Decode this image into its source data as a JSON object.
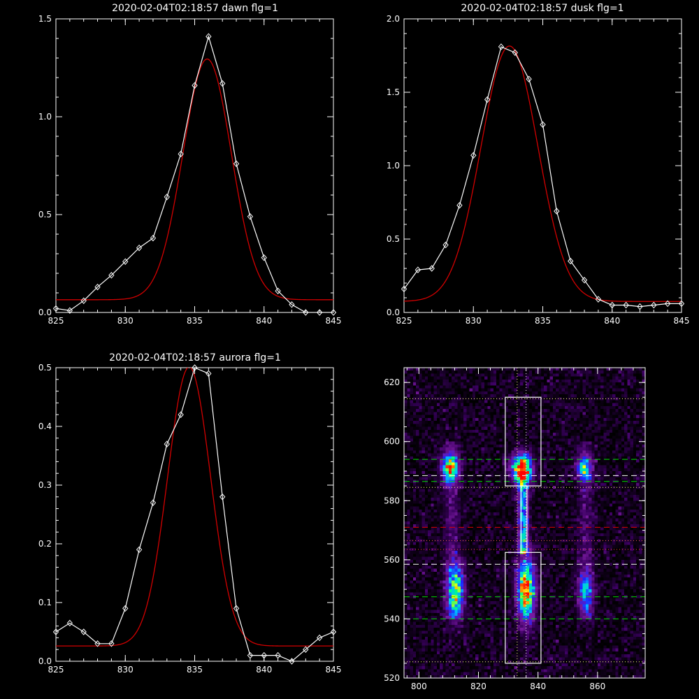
{
  "colors": {
    "background": "#000000",
    "axis": "#ffffff",
    "data_line": "#ffffff",
    "fit_line": "#d40000",
    "green_dash": "#00e000",
    "red_dash": "#e00000"
  },
  "chart_data": [
    {
      "id": "dawn",
      "type": "line",
      "title": "2020-02-04T02:18:57 dawn flg=1",
      "xlim": [
        825,
        845
      ],
      "ylim": [
        0,
        1.5
      ],
      "xticks": [
        825,
        830,
        835,
        840,
        845
      ],
      "xtick_labels": [
        "825",
        "830",
        "835",
        "840",
        "845"
      ],
      "yticks": [
        0,
        0.5,
        1.0,
        1.5
      ],
      "ytick_labels": [
        "0.0",
        "0.5",
        "1.0",
        "1.5"
      ],
      "series": [
        {
          "style": "line-diamond-markers",
          "x": [
            825,
            826,
            827,
            828,
            829,
            830,
            831,
            832,
            833,
            834,
            835,
            836,
            837,
            838,
            839,
            840,
            841,
            842,
            843,
            844,
            845
          ],
          "y": [
            0.02,
            0.01,
            0.06,
            0.13,
            0.19,
            0.26,
            0.33,
            0.38,
            0.59,
            0.81,
            1.16,
            1.41,
            1.17,
            0.76,
            0.49,
            0.28,
            0.11,
            0.04,
            0.0,
            0.0,
            0.0
          ]
        },
        {
          "style": "gaussian-fit",
          "amplitude": 1.23,
          "center": 835.9,
          "sigma": 1.75,
          "offset": 0.065
        }
      ]
    },
    {
      "id": "dusk",
      "type": "line",
      "title": "2020-02-04T02:18:57 dusk flg=1",
      "xlim": [
        825,
        845
      ],
      "ylim": [
        0,
        2.0
      ],
      "xticks": [
        825,
        830,
        835,
        840,
        845
      ],
      "xtick_labels": [
        "825",
        "830",
        "835",
        "840",
        "845"
      ],
      "yticks": [
        0,
        0.5,
        1.0,
        1.5,
        2.0
      ],
      "ytick_labels": [
        "0.0",
        "0.5",
        "1.0",
        "1.5",
        "2.0"
      ],
      "series": [
        {
          "style": "line-diamond-markers",
          "x": [
            825,
            826,
            827,
            828,
            829,
            830,
            831,
            832,
            833,
            834,
            835,
            836,
            837,
            838,
            839,
            840,
            841,
            842,
            843,
            844,
            845
          ],
          "y": [
            0.16,
            0.29,
            0.3,
            0.46,
            0.73,
            1.07,
            1.45,
            1.81,
            1.77,
            1.59,
            1.28,
            0.69,
            0.35,
            0.22,
            0.09,
            0.05,
            0.05,
            0.04,
            0.05,
            0.06,
            0.06
          ]
        },
        {
          "style": "gaussian-fit",
          "amplitude": 1.74,
          "center": 832.6,
          "sigma": 2.05,
          "offset": 0.075
        }
      ]
    },
    {
      "id": "aurora",
      "type": "line",
      "title": "2020-02-04T02:18:57 aurora flg=1",
      "xlim": [
        825,
        845
      ],
      "ylim": [
        0,
        0.5
      ],
      "xticks": [
        825,
        830,
        835,
        840,
        845
      ],
      "xtick_labels": [
        "825",
        "830",
        "835",
        "840",
        "845"
      ],
      "yticks": [
        0,
        0.1,
        0.2,
        0.3,
        0.4,
        0.5
      ],
      "ytick_labels": [
        "0.0",
        "0.1",
        "0.2",
        "0.3",
        "0.4",
        "0.5"
      ],
      "series": [
        {
          "style": "line-diamond-markers",
          "x": [
            825,
            826,
            827,
            828,
            829,
            830,
            831,
            832,
            833,
            834,
            835,
            836,
            837,
            838,
            839,
            840,
            841,
            842,
            843,
            844,
            845
          ],
          "y": [
            0.05,
            0.065,
            0.05,
            0.03,
            0.03,
            0.09,
            0.19,
            0.27,
            0.37,
            0.42,
            0.5,
            0.49,
            0.28,
            0.09,
            0.01,
            0.01,
            0.01,
            0.0,
            0.02,
            0.04,
            0.05
          ]
        },
        {
          "style": "gaussian-fit",
          "amplitude": 0.475,
          "center": 834.6,
          "sigma": 1.55,
          "offset": 0.026
        }
      ]
    },
    {
      "id": "image",
      "type": "heatmap",
      "title": "",
      "xlim": [
        795,
        876
      ],
      "ylim": [
        520,
        625
      ],
      "xticks": [
        800,
        820,
        840,
        860
      ],
      "xtick_labels": [
        "800",
        "820",
        "840",
        "860"
      ],
      "yticks": [
        520,
        540,
        560,
        580,
        600,
        620
      ],
      "ytick_labels": [
        "520",
        "540",
        "560",
        "580",
        "600",
        "620"
      ],
      "colormap": [
        "#000000",
        "#3a0060",
        "#7a1aa0",
        "#2020ff",
        "#00c0ff",
        "#00ff80",
        "#ffff00",
        "#ff4000",
        "#ff0000"
      ],
      "blobs": [
        {
          "x": 810.5,
          "y": 591,
          "sx": 1.8,
          "sy": 3.2,
          "amp": 0.72
        },
        {
          "x": 834.5,
          "y": 591,
          "sx": 2.2,
          "sy": 3.0,
          "amp": 1.0
        },
        {
          "x": 855.5,
          "y": 591,
          "sx": 1.6,
          "sy": 2.6,
          "amp": 0.55
        },
        {
          "x": 812.5,
          "y": 549,
          "sx": 1.8,
          "sy": 6.0,
          "amp": 0.6
        },
        {
          "x": 836.0,
          "y": 550,
          "sx": 2.0,
          "sy": 7.0,
          "amp": 0.85
        },
        {
          "x": 856.0,
          "y": 549,
          "sx": 1.6,
          "sy": 5.0,
          "amp": 0.4
        }
      ],
      "columns": [
        {
          "x": 835,
          "y0": 562,
          "y1": 590,
          "sx": 1.2,
          "amp": 0.45
        },
        {
          "x": 811,
          "y0": 540,
          "y1": 600,
          "sx": 1.8,
          "amp": 0.12
        },
        {
          "x": 856,
          "y0": 540,
          "y1": 600,
          "sx": 1.8,
          "amp": 0.1
        }
      ],
      "boxes": [
        {
          "x0": 829,
          "x1": 841,
          "y0": 585,
          "y1": 615
        },
        {
          "x0": 829,
          "x1": 841,
          "y0": 525,
          "y1": 562.5
        },
        {
          "x0": 834.3,
          "x1": 836.3,
          "y0": 562.5,
          "y1": 585
        }
      ],
      "hlines": [
        {
          "y": 614.5,
          "color": "#ffff80",
          "style": "dotted"
        },
        {
          "y": 525.5,
          "color": "#ffff80",
          "style": "dotted"
        },
        {
          "y": 594,
          "color": "#00e000",
          "style": "dashed"
        },
        {
          "y": 588.5,
          "color": "#ffffff",
          "style": "dashed"
        },
        {
          "y": 586.5,
          "color": "#00e000",
          "style": "dashed"
        },
        {
          "y": 584.5,
          "color": "#ffff80",
          "style": "dotted"
        },
        {
          "y": 571,
          "color": "#e00000",
          "style": "dashed"
        },
        {
          "y": 566.5,
          "color": "#ff6060",
          "style": "dotted"
        },
        {
          "y": 563.5,
          "color": "#ff4040",
          "style": "dotted"
        },
        {
          "y": 558.5,
          "color": "#ffffff",
          "style": "dashed"
        },
        {
          "y": 547.5,
          "color": "#00e000",
          "style": "dashed"
        },
        {
          "y": 540,
          "color": "#00e000",
          "style": "dashed"
        }
      ],
      "vlines": [
        {
          "x": 833,
          "color": "#ffff80",
          "style": "dotted"
        },
        {
          "x": 836,
          "color": "#ffffff",
          "style": "dotted"
        }
      ]
    }
  ]
}
